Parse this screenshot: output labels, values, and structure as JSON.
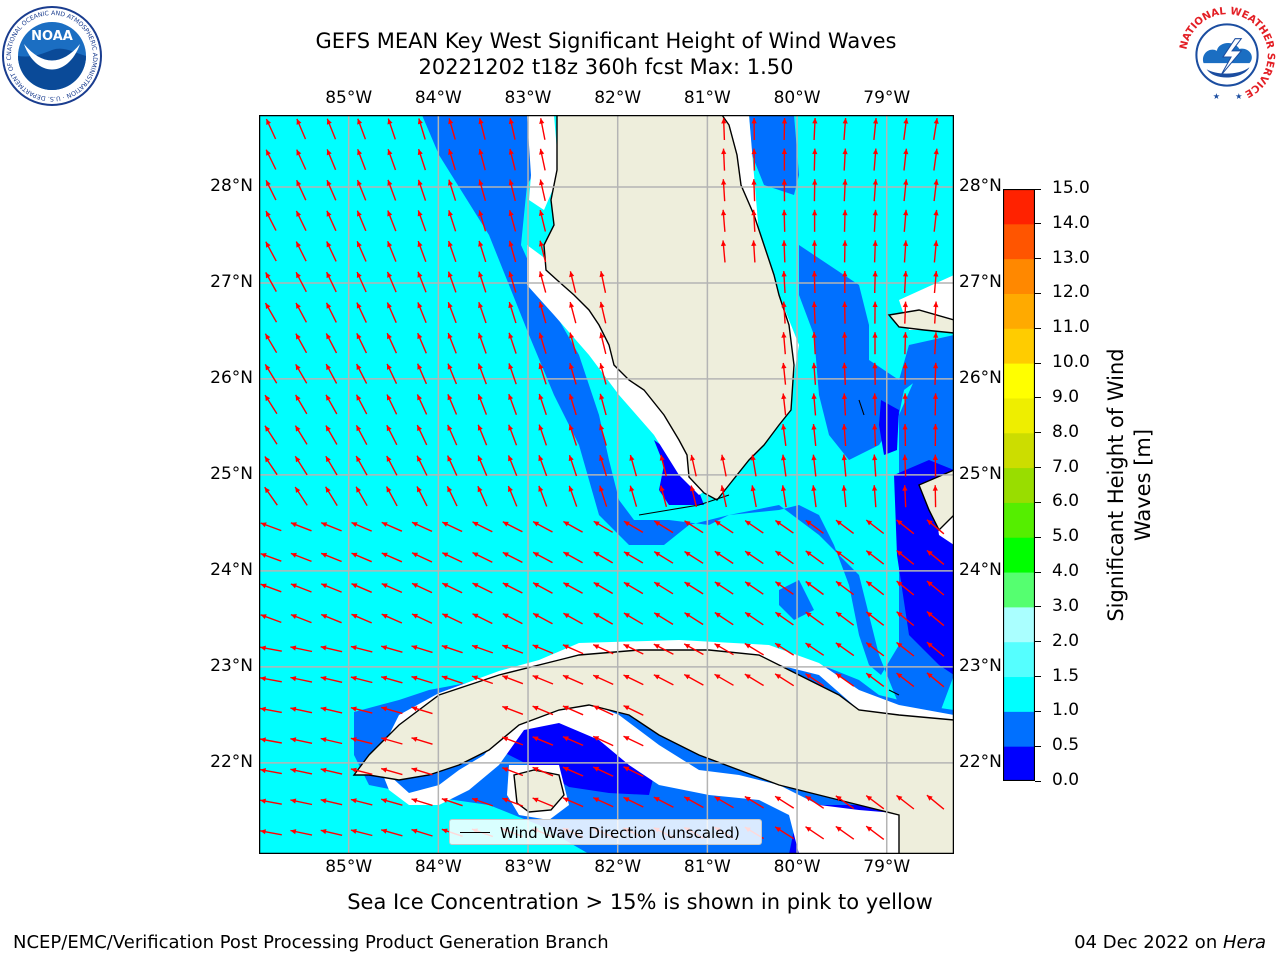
{
  "header": {
    "title_line1": "GEFS MEAN Key West Significant Height of Wind Waves",
    "title_line2": "20221202 t18z 360h fcst   Max: 1.50"
  },
  "logos": {
    "left": {
      "text": "NOAA",
      "ring_text": "NATIONAL OCEANIC AND ATMOSPHERIC ADMINISTRATION · U.S. DEPARTMENT OF COMMERCE"
    },
    "right": {
      "ring_text": "NATIONAL WEATHER SERVICE"
    }
  },
  "map": {
    "lon_labels": [
      "85°W",
      "84°W",
      "83°W",
      "82°W",
      "81°W",
      "80°W",
      "79°W"
    ],
    "lat_labels": [
      "28°N",
      "27°N",
      "26°N",
      "25°N",
      "24°N",
      "23°N",
      "22°N"
    ],
    "lon_values": [
      -85,
      -84,
      -83,
      -82,
      -81,
      -80,
      -79
    ],
    "lat_values": [
      28,
      27,
      26,
      25,
      24,
      23,
      22
    ],
    "extent": {
      "lon_min": -86,
      "lon_max": -78.25,
      "lat_min": 21.05,
      "lat_max": 28.75
    },
    "colors": {
      "ocean_default": "#00ffff",
      "land": "#eeeedc",
      "coast": "#000000",
      "arrow": "#ff0000",
      "grid": "#b4b4b4"
    },
    "legend_label": "Wind Wave Direction (unscaled)"
  },
  "colorbar": {
    "label": "Significant Height of Wind Waves [m]",
    "tick_labels": [
      "0.0",
      "0.5",
      "1.0",
      "1.5",
      "2.0",
      "3.0",
      "4.0",
      "5.0",
      "6.0",
      "7.0",
      "8.0",
      "9.0",
      "10.0",
      "11.0",
      "12.0",
      "13.0",
      "14.0",
      "15.0"
    ],
    "colors": [
      "#0000ff",
      "#0070ff",
      "#00ffff",
      "#55ffff",
      "#aaffff",
      "#55ff70",
      "#00ff00",
      "#55ee00",
      "#99dd00",
      "#ccdd00",
      "#eeee00",
      "#ffff00",
      "#ffcc00",
      "#ffaa00",
      "#ff8800",
      "#ff5500",
      "#ff2200"
    ]
  },
  "caption": "Sea Ice Concentration > 15% is shown in pink to yellow",
  "footer": {
    "left": "NCEP/EMC/Verification Post Processing Product Generation Branch",
    "right_prefix": "04 Dec 2022 on ",
    "right_host": "Hera"
  }
}
